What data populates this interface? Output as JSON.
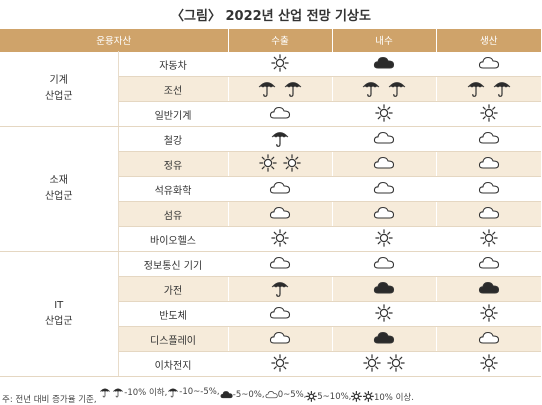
{
  "title": "〈그림〉 2022년 산업 전망 기상도",
  "headers": {
    "category": "운용자산",
    "export": "수출",
    "domestic": "내수",
    "production": "생산"
  },
  "icon_meaning": {
    "umbrella2": "-10% 이하",
    "umbrella": "-10~-5%",
    "cloud_dark": "-5~0%",
    "cloud": "0~5%",
    "sun": "5~10%",
    "sun2": "10% 이상"
  },
  "groups": [
    {
      "label": "기계\n산업군",
      "rows": [
        {
          "name": "자동차",
          "export": "sun",
          "domestic": "cloud_dark",
          "production": "cloud"
        },
        {
          "name": "조선",
          "export": "umbrella2",
          "domestic": "umbrella2",
          "production": "umbrella2"
        },
        {
          "name": "일반기계",
          "export": "cloud",
          "domestic": "sun",
          "production": "sun"
        }
      ]
    },
    {
      "label": "소재\n산업군",
      "rows": [
        {
          "name": "철강",
          "export": "umbrella",
          "domestic": "cloud",
          "production": "cloud"
        },
        {
          "name": "정유",
          "export": "sun2",
          "domestic": "cloud",
          "production": "cloud"
        },
        {
          "name": "석유화학",
          "export": "cloud",
          "domestic": "cloud",
          "production": "cloud"
        },
        {
          "name": "섬유",
          "export": "cloud",
          "domestic": "cloud",
          "production": "cloud"
        },
        {
          "name": "바이오헬스",
          "export": "sun",
          "domestic": "sun",
          "production": "sun"
        }
      ]
    },
    {
      "label": "IT\n산업군",
      "rows": [
        {
          "name": "정보통신 기기",
          "export": "cloud",
          "domestic": "cloud",
          "production": "cloud"
        },
        {
          "name": "가전",
          "export": "umbrella",
          "domestic": "cloud_dark",
          "production": "cloud_dark"
        },
        {
          "name": "반도체",
          "export": "cloud",
          "domestic": "sun",
          "production": "sun"
        },
        {
          "name": "디스플레이",
          "export": "cloud",
          "domestic": "cloud_dark",
          "production": "cloud"
        },
        {
          "name": "이차전지",
          "export": "sun",
          "domestic": "sun2",
          "production": "sun"
        }
      ]
    }
  ],
  "footnote": {
    "prefix": "주: 전년 대비 증가율 기준,",
    "items": [
      {
        "icon": "umbrella2",
        "text": "-10% 이하,"
      },
      {
        "icon": "umbrella",
        "text": "-10~-5%,"
      },
      {
        "icon": "cloud_dark",
        "text": "-5~0%,"
      },
      {
        "icon": "cloud",
        "text": "0~5%,"
      },
      {
        "icon": "sun",
        "text": "5~10%,"
      },
      {
        "icon": "sun2",
        "text": "10% 이상."
      }
    ]
  }
}
